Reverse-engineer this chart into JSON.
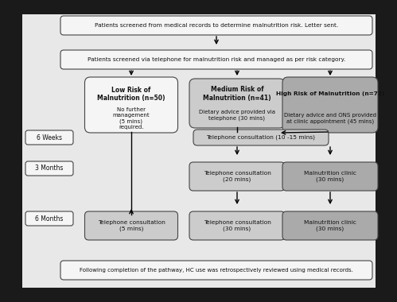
{
  "outer_bg": "#1a1a1a",
  "inner_bg": "#e8e8e8",
  "box_bg_white": "#f5f5f5",
  "box_bg_light": "#cccccc",
  "box_bg_medium": "#aaaaaa",
  "box_border": "#444444",
  "text_color": "#111111",
  "title_box1": "Patients screened from medical records to determine malnutrition risk. Letter sent.",
  "title_box2": "Patients screened via telephone for malnutrition risk and managed as per risk category.",
  "low_risk_title": "Low Risk of\nMalnutrition (n=50)",
  "low_risk_body": "No further\nmanagement\n(5 mins)\nrequired.",
  "med_risk_title": "Medium Risk of\nMalnutrition (n=41)",
  "med_risk_body": "Dietary advice provided via\ntelephone (30 mins)",
  "high_risk_title": "High Risk of Malnutrition (n=72)",
  "high_risk_body": "Dietary advice and ONS provided\nat clinic appointment (45 mins)",
  "tel_consult_6w": "Telephone consultation (10 -15 mins)",
  "label_6weeks": "6 Weeks",
  "label_3months": "3 Months",
  "label_6months": "6 Months",
  "tel_3m_mid": "Telephone consultation\n(20 mins)",
  "mal_3m_right": "Malnutrition clinic\n(30 mins)",
  "tel_6m_left": "Telephone consultation\n(5 mins)",
  "tel_6m_mid": "Telephone consultation\n(30 mins)",
  "mal_6m_right": "Malnutrition clinic\n(30 mins)",
  "footer": "Following completion of the pathway, HC use was retrospectively reviewed using medical records."
}
